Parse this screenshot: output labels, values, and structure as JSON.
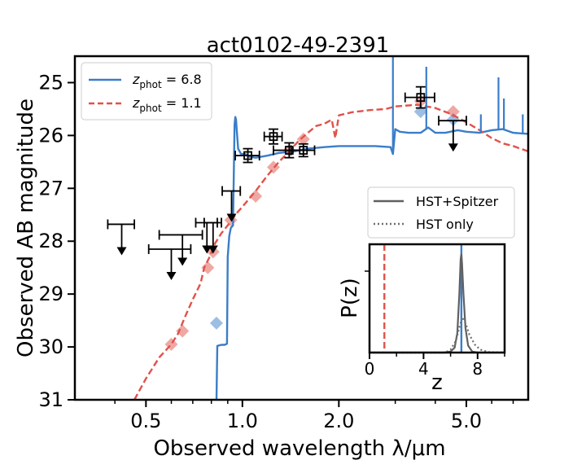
{
  "chart_data": {
    "type": "line",
    "title": "act0102-49-2391",
    "xlabel": "Observed wavelength λ/μm",
    "ylabel": "Observed AB magnitude",
    "xscale": "log",
    "xlim": [
      0.3,
      7.8
    ],
    "ylim": [
      31,
      24.5
    ],
    "xticks": [
      0.5,
      1.0,
      2.0,
      5.0
    ],
    "xtick_labels": [
      "0.5",
      "1.0",
      "2.0",
      "5.0"
    ],
    "yticks": [
      25,
      26,
      27,
      28,
      29,
      30,
      31
    ],
    "ytick_labels": [
      "25",
      "26",
      "27",
      "28",
      "29",
      "30",
      "31"
    ],
    "legend_main": [
      {
        "name": "z_phot = 6.8",
        "label_base": "z",
        "label_sub": "phot",
        "label_rest": " = 6.8",
        "color": "#3a7dc9",
        "style": "solid"
      },
      {
        "name": "z_phot = 1.1",
        "label_base": "z",
        "label_sub": "phot",
        "label_rest": " = 1.1",
        "color": "#e0524a",
        "style": "dashed"
      }
    ],
    "series": [
      {
        "name": "z_phot = 6.8",
        "color": "#3a7dc9",
        "style": "solid",
        "points": [
          [
            0.83,
            31.0
          ],
          [
            0.835,
            29.98
          ],
          [
            0.86,
            29.96
          ],
          [
            0.88,
            29.96
          ],
          [
            0.895,
            29.94
          ],
          [
            0.9,
            28.3
          ],
          [
            0.91,
            27.9
          ],
          [
            0.92,
            27.75
          ],
          [
            0.935,
            27.7
          ],
          [
            0.945,
            25.8
          ],
          [
            0.95,
            25.65
          ],
          [
            0.955,
            25.7
          ],
          [
            0.96,
            25.9
          ],
          [
            0.97,
            26.25
          ],
          [
            0.99,
            26.35
          ],
          [
            1.02,
            26.35
          ],
          [
            1.05,
            26.4
          ],
          [
            1.1,
            26.42
          ],
          [
            1.2,
            26.38
          ],
          [
            1.3,
            26.33
          ],
          [
            1.45,
            26.3
          ],
          [
            1.6,
            26.25
          ],
          [
            1.8,
            26.22
          ],
          [
            2.0,
            26.2
          ],
          [
            2.3,
            26.2
          ],
          [
            2.6,
            26.2
          ],
          [
            2.9,
            26.22
          ],
          [
            2.95,
            26.35
          ],
          [
            3.0,
            25.88
          ],
          [
            3.1,
            25.93
          ],
          [
            3.3,
            25.95
          ],
          [
            3.6,
            25.95
          ],
          [
            3.8,
            25.85
          ],
          [
            4.0,
            25.95
          ],
          [
            4.3,
            25.95
          ],
          [
            4.7,
            25.9
          ],
          [
            5.0,
            25.93
          ],
          [
            5.5,
            25.95
          ],
          [
            6.0,
            25.9
          ],
          [
            6.5,
            25.88
          ],
          [
            7.0,
            25.95
          ],
          [
            7.8,
            25.97
          ]
        ]
      },
      {
        "name": "z_phot = 1.1",
        "color": "#e0524a",
        "style": "dashed",
        "points": [
          [
            0.46,
            31.0
          ],
          [
            0.5,
            30.6
          ],
          [
            0.55,
            30.2
          ],
          [
            0.6,
            29.95
          ],
          [
            0.63,
            29.75
          ],
          [
            0.66,
            29.45
          ],
          [
            0.7,
            29.1
          ],
          [
            0.74,
            28.8
          ],
          [
            0.76,
            28.5
          ],
          [
            0.79,
            28.3
          ],
          [
            0.82,
            28.05
          ],
          [
            0.86,
            27.85
          ],
          [
            0.9,
            27.7
          ],
          [
            0.95,
            27.5
          ],
          [
            1.0,
            27.35
          ],
          [
            1.1,
            27.05
          ],
          [
            1.2,
            26.75
          ],
          [
            1.3,
            26.5
          ],
          [
            1.4,
            26.3
          ],
          [
            1.5,
            26.1
          ],
          [
            1.6,
            25.95
          ],
          [
            1.7,
            25.82
          ],
          [
            1.8,
            25.78
          ],
          [
            1.9,
            25.7
          ],
          [
            1.95,
            26.05
          ],
          [
            2.0,
            25.62
          ],
          [
            2.2,
            25.56
          ],
          [
            2.5,
            25.52
          ],
          [
            2.8,
            25.5
          ],
          [
            3.0,
            25.45
          ],
          [
            3.5,
            25.42
          ],
          [
            4.0,
            25.48
          ],
          [
            4.5,
            25.6
          ],
          [
            5.0,
            25.75
          ],
          [
            5.5,
            25.9
          ],
          [
            6.0,
            26.05
          ],
          [
            6.5,
            26.15
          ],
          [
            7.0,
            26.2
          ],
          [
            7.8,
            26.3
          ]
        ]
      }
    ],
    "emission_spikes_z68": [
      [
        2.95,
        24.5
      ],
      [
        3.75,
        24.7
      ],
      [
        5.55,
        25.6
      ],
      [
        6.3,
        24.9
      ],
      [
        6.55,
        25.3
      ],
      [
        7.5,
        25.6
      ]
    ],
    "observed_points": [
      {
        "x": 1.04,
        "y": 26.38,
        "xerr": 0.09,
        "yerr": 0.13
      },
      {
        "x": 1.25,
        "y": 26.02,
        "xerr": 0.08,
        "yerr": 0.14
      },
      {
        "x": 1.4,
        "y": 26.28,
        "xerr": 0.15,
        "yerr": 0.14
      },
      {
        "x": 1.55,
        "y": 26.28,
        "xerr": 0.13,
        "yerr": 0.12
      },
      {
        "x": 3.6,
        "y": 25.28,
        "xerr": 0.38,
        "yerr": 0.2
      }
    ],
    "upper_limits": [
      {
        "x": 0.42,
        "y": 27.68,
        "xerr": 0.04
      },
      {
        "x": 0.6,
        "y": 28.15,
        "xerr": 0.09
      },
      {
        "x": 0.65,
        "y": 27.88,
        "xerr": 0.1
      },
      {
        "x": 0.775,
        "y": 27.65,
        "xerr": 0.06
      },
      {
        "x": 0.81,
        "y": 27.65,
        "xerr": 0.05
      },
      {
        "x": 0.925,
        "y": 27.05,
        "xerr": 0.06
      },
      {
        "x": 4.55,
        "y": 25.72,
        "xerr": 0.45
      }
    ],
    "model_photometry_z68": [
      {
        "x": 0.83,
        "y": 29.55
      },
      {
        "x": 3.6,
        "y": 25.55
      },
      {
        "x": 4.55,
        "y": 25.7
      }
    ],
    "model_photometry_z11": [
      {
        "x": 0.6,
        "y": 29.95
      },
      {
        "x": 0.65,
        "y": 29.7
      },
      {
        "x": 0.78,
        "y": 28.5
      },
      {
        "x": 0.81,
        "y": 28.2
      },
      {
        "x": 0.92,
        "y": 27.6
      },
      {
        "x": 1.1,
        "y": 27.15
      },
      {
        "x": 1.25,
        "y": 26.6
      },
      {
        "x": 1.4,
        "y": 26.28
      },
      {
        "x": 1.55,
        "y": 26.07
      },
      {
        "x": 3.6,
        "y": 25.35
      },
      {
        "x": 4.55,
        "y": 25.55
      }
    ],
    "legend_pz": [
      {
        "name": "HST+Spitzer",
        "color": "#606060",
        "style": "solid"
      },
      {
        "name": "HST only",
        "color": "#707070",
        "style": "dotted"
      }
    ],
    "inset": {
      "xlabel": "z",
      "ylabel": "P(z)",
      "xlim": [
        0,
        10
      ],
      "xticks": [
        0,
        4,
        8
      ],
      "xtick_labels": [
        "0",
        "4",
        "8"
      ],
      "z_phot_high": 6.8,
      "z_phot_low": 1.1,
      "pz_hst_spitzer": [
        [
          0,
          0
        ],
        [
          5.5,
          0
        ],
        [
          6.0,
          0.01
        ],
        [
          6.3,
          0.05
        ],
        [
          6.5,
          0.2
        ],
        [
          6.65,
          0.6
        ],
        [
          6.75,
          0.95
        ],
        [
          6.8,
          1.0
        ],
        [
          6.85,
          0.9
        ],
        [
          6.95,
          0.6
        ],
        [
          7.1,
          0.25
        ],
        [
          7.3,
          0.07
        ],
        [
          7.6,
          0.01
        ],
        [
          8.0,
          0
        ],
        [
          10,
          0
        ]
      ],
      "pz_hst_only": [
        [
          0,
          0
        ],
        [
          5.6,
          0
        ],
        [
          6.0,
          0.03
        ],
        [
          6.4,
          0.12
        ],
        [
          6.7,
          0.28
        ],
        [
          6.9,
          0.36
        ],
        [
          7.1,
          0.3
        ],
        [
          7.4,
          0.18
        ],
        [
          7.8,
          0.08
        ],
        [
          8.2,
          0.03
        ],
        [
          8.8,
          0.005
        ],
        [
          10,
          0
        ]
      ]
    }
  }
}
